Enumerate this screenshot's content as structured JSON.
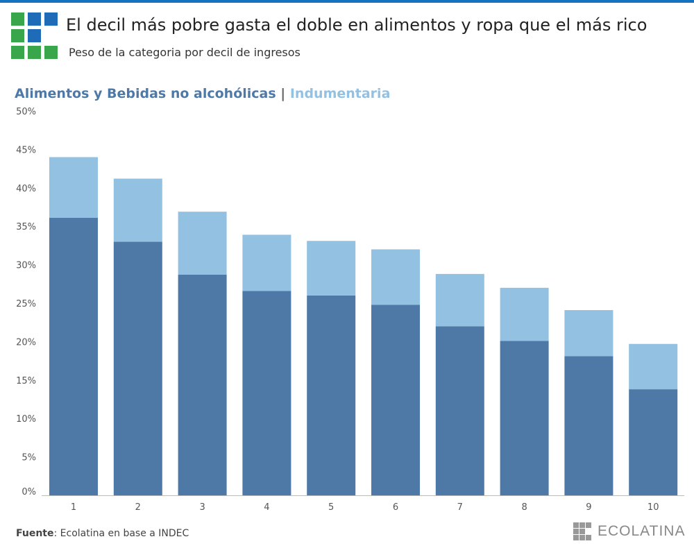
{
  "header": {
    "title": "El decil más pobre gasta el doble en alimentos y ropa que el más rico",
    "subtitle": "Peso de la categoria por decil de ingresos"
  },
  "legend": {
    "series1": "Alimentos y Bebidas no alcohólicas",
    "separator": " | ",
    "series2": "Indumentaria"
  },
  "footer": {
    "source_label": "Fuente",
    "source_text": ": Ecolatina en base a INDEC",
    "logo": "ECOLATINA"
  },
  "colors": {
    "series1": "#4e79a7",
    "series2": "#93c1e1",
    "accent": "#1672c0",
    "logo_green": "#3aa64c",
    "logo_blue": "#1e6bb8"
  },
  "chart_data": {
    "type": "bar",
    "stacked": true,
    "categories": [
      "1",
      "2",
      "3",
      "4",
      "5",
      "6",
      "7",
      "8",
      "9",
      "10"
    ],
    "series": [
      {
        "name": "Alimentos y Bebidas no alcohólicas",
        "values": [
          36.1,
          33.0,
          28.7,
          26.6,
          26.0,
          24.8,
          22.0,
          20.1,
          18.1,
          13.8
        ]
      },
      {
        "name": "Indumentaria",
        "values": [
          7.9,
          8.2,
          8.2,
          7.3,
          7.1,
          7.2,
          6.8,
          6.9,
          6.0,
          5.9
        ]
      }
    ],
    "ylim": [
      0,
      50
    ],
    "yticks": [
      "0%",
      "5%",
      "10%",
      "15%",
      "20%",
      "25%",
      "30%",
      "35%",
      "40%",
      "45%",
      "50%"
    ],
    "grid": false
  }
}
